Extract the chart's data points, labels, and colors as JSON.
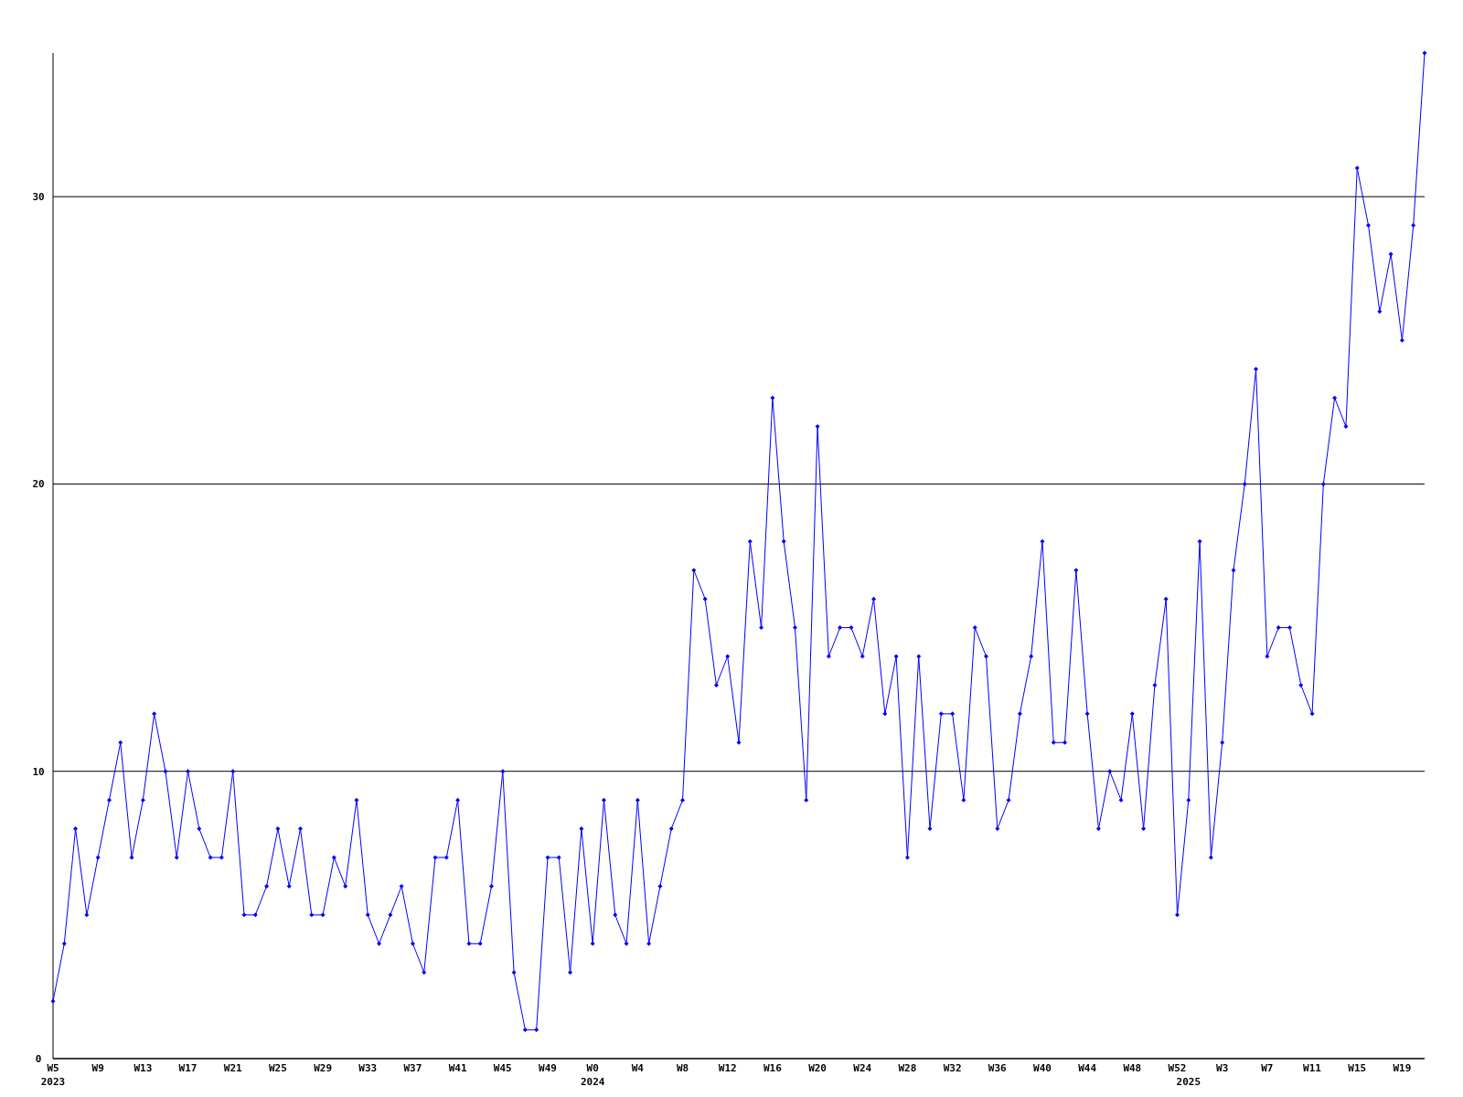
{
  "chart_data": {
    "type": "line",
    "categories": [
      "W5\n2023",
      null,
      null,
      null,
      "W9",
      null,
      null,
      null,
      "W13",
      null,
      null,
      null,
      "W17",
      null,
      null,
      null,
      "W21",
      null,
      null,
      null,
      "W25",
      null,
      null,
      null,
      "W29",
      null,
      null,
      null,
      "W33",
      null,
      null,
      null,
      "W37",
      null,
      null,
      null,
      "W41",
      null,
      null,
      null,
      "W45",
      null,
      null,
      null,
      "W49",
      null,
      null,
      null,
      "W0\n2024",
      null,
      null,
      null,
      "W4",
      null,
      null,
      null,
      "W8",
      null,
      null,
      null,
      "W12",
      null,
      null,
      null,
      "W16",
      null,
      null,
      null,
      "W20",
      null,
      null,
      null,
      "W24",
      null,
      null,
      null,
      "W28",
      null,
      null,
      null,
      "W32",
      null,
      null,
      null,
      "W36",
      null,
      null,
      null,
      "W40",
      null,
      null,
      null,
      "W44",
      null,
      null,
      null,
      "W48",
      null,
      null,
      null,
      "W52",
      "\n2025",
      null,
      null,
      "W3",
      null,
      null,
      null,
      "W7",
      null,
      null,
      null,
      "W11",
      null,
      null,
      null,
      "W15",
      null,
      null,
      null,
      "W19",
      null,
      null
    ],
    "series": [
      {
        "color": "#0000ff",
        "values": [
          2,
          4,
          8,
          5,
          7,
          9,
          11,
          7,
          9,
          12,
          10,
          7,
          10,
          8,
          7,
          7,
          10,
          5,
          5,
          6,
          8,
          6,
          8,
          5,
          5,
          7,
          6,
          9,
          5,
          4,
          5,
          6,
          4,
          3,
          7,
          7,
          9,
          4,
          4,
          6,
          10,
          3,
          1,
          1,
          7,
          7,
          3,
          8,
          4,
          9,
          5,
          4,
          9,
          4,
          6,
          8,
          9,
          17,
          16,
          13,
          14,
          11,
          18,
          15,
          23,
          18,
          15,
          9,
          22,
          14,
          15,
          15,
          14,
          16,
          12,
          14,
          7,
          14,
          8,
          12,
          12,
          9,
          15,
          14,
          8,
          9,
          12,
          14,
          18,
          11,
          11,
          17,
          12,
          8,
          10,
          9,
          12,
          8,
          13,
          16,
          5,
          9,
          18,
          7,
          11,
          17,
          20,
          24,
          14,
          15,
          15,
          13,
          12,
          20,
          23,
          22,
          31,
          29,
          26,
          28,
          25,
          29,
          35
        ]
      }
    ],
    "ylim": [
      0,
      35
    ],
    "yticks": [
      0,
      10,
      20,
      30
    ],
    "grid": "y",
    "marker": "diamond",
    "line_style": "solid"
  }
}
